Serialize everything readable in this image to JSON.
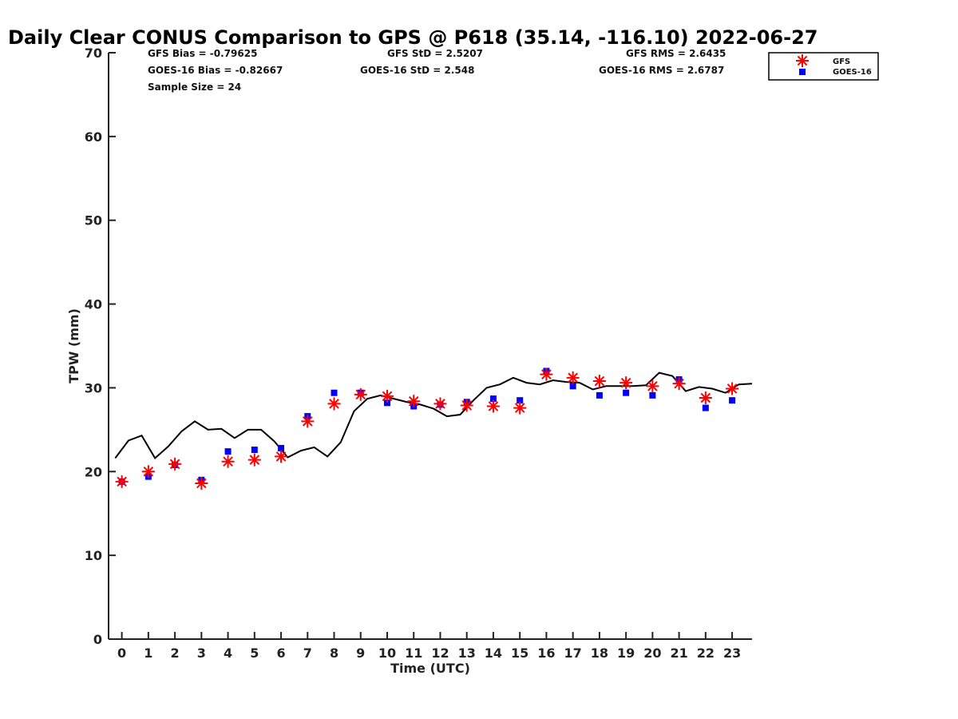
{
  "chart_data": {
    "type": "scatter",
    "title": "Daily Clear CONUS Comparison to GPS @ P618 (35.14, -116.10) 2022-06-27",
    "xlabel": "Time (UTC)",
    "ylabel": "TPW (mm)",
    "xlim": [
      -0.5,
      23.75
    ],
    "ylim": [
      0,
      70
    ],
    "x_ticks": [
      0,
      1,
      2,
      3,
      4,
      5,
      6,
      7,
      8,
      9,
      10,
      11,
      12,
      13,
      14,
      15,
      16,
      17,
      18,
      19,
      20,
      21,
      22,
      23
    ],
    "y_ticks": [
      0,
      10,
      20,
      30,
      40,
      50,
      60,
      70
    ],
    "grid": false,
    "legend_position": "top-right",
    "stats": {
      "gfs_bias": "GFS Bias = -0.79625",
      "goes_bias": "GOES-16 Bias = -0.82667",
      "sample_size": "Sample Size = 24",
      "gfs_std": "GFS StD = 2.5207",
      "goes_std": "GOES-16 StD = 2.548",
      "gfs_rms": "GFS RMS = 2.6435",
      "goes_rms": "GOES-16 RMS = 2.6787"
    },
    "series": [
      {
        "name": "GFS",
        "marker": "asterisk",
        "color": "#ff0000",
        "x": [
          0,
          1,
          2,
          3,
          4,
          5,
          6,
          7,
          8,
          9,
          10,
          11,
          12,
          13,
          14,
          15,
          16,
          17,
          18,
          19,
          20,
          21,
          22,
          23
        ],
        "y": [
          18.8,
          20.0,
          20.9,
          18.6,
          21.2,
          21.4,
          21.8,
          26.0,
          28.1,
          29.2,
          29.0,
          28.4,
          28.1,
          27.9,
          27.8,
          27.6,
          31.6,
          31.2,
          30.8,
          30.6,
          30.2,
          30.5,
          28.8,
          29.9
        ]
      },
      {
        "name": "GOES-16",
        "marker": "square",
        "color": "#0000ff",
        "x": [
          0,
          1,
          2,
          3,
          4,
          5,
          6,
          7,
          8,
          9,
          10,
          11,
          12,
          13,
          14,
          15,
          16,
          17,
          18,
          19,
          20,
          21,
          22,
          23
        ],
        "y": [
          18.8,
          19.4,
          20.8,
          19.0,
          22.4,
          22.6,
          22.8,
          26.6,
          29.4,
          29.4,
          28.2,
          27.8,
          28.0,
          28.3,
          28.7,
          28.5,
          32.0,
          30.2,
          29.1,
          29.4,
          29.1,
          31.0,
          27.6,
          28.5
        ]
      },
      {
        "type": "line",
        "color": "#000000",
        "x": [
          -0.25,
          0.25,
          0.75,
          1.25,
          1.75,
          2.25,
          2.75,
          3.25,
          3.75,
          4.25,
          4.75,
          5.25,
          5.75,
          6.25,
          6.75,
          7.25,
          7.75,
          8.25,
          8.75,
          9.25,
          9.75,
          10.25,
          10.75,
          11.25,
          11.75,
          12.25,
          12.75,
          13.25,
          13.75,
          14.25,
          14.75,
          15.25,
          15.75,
          16.25,
          16.75,
          17.25,
          17.75,
          18.25,
          18.75,
          19.25,
          19.75,
          20.25,
          20.75,
          21.25,
          21.75,
          22.25,
          22.75,
          23.25,
          23.75
        ],
        "y": [
          21.6,
          23.7,
          24.3,
          21.6,
          23.0,
          24.8,
          26.0,
          25.0,
          25.1,
          24.0,
          25.0,
          25.0,
          23.6,
          21.7,
          22.5,
          22.9,
          21.8,
          23.5,
          27.2,
          28.7,
          29.1,
          28.7,
          28.3,
          28.0,
          27.5,
          26.6,
          26.8,
          28.5,
          30.0,
          30.4,
          31.2,
          30.6,
          30.4,
          30.9,
          30.7,
          30.6,
          29.8,
          30.2,
          30.2,
          30.2,
          30.3,
          31.8,
          31.4,
          29.6,
          30.1,
          29.9,
          29.4,
          30.4,
          30.5
        ]
      }
    ]
  }
}
